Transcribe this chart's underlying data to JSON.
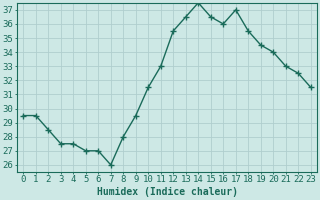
{
  "x": [
    0,
    1,
    2,
    3,
    4,
    5,
    6,
    7,
    8,
    9,
    10,
    11,
    12,
    13,
    14,
    15,
    16,
    17,
    18,
    19,
    20,
    21,
    22,
    23
  ],
  "y": [
    29.5,
    29.5,
    28.5,
    27.5,
    27.5,
    27.0,
    27.0,
    26.0,
    28.0,
    29.5,
    31.5,
    33.0,
    35.5,
    36.5,
    37.5,
    36.5,
    36.0,
    37.0,
    35.5,
    34.5,
    34.0,
    33.0,
    32.5,
    31.5
  ],
  "line_color": "#1a6b5a",
  "marker": "+",
  "markersize": 4,
  "linewidth": 1.0,
  "bg_color": "#cde8e5",
  "grid_color": "#b0cece",
  "xlabel": "Humidex (Indice chaleur)",
  "ylim": [
    25.5,
    37.5
  ],
  "xlim": [
    -0.5,
    23.5
  ],
  "yticks": [
    26,
    27,
    28,
    29,
    30,
    31,
    32,
    33,
    34,
    35,
    36,
    37
  ],
  "xticks": [
    0,
    1,
    2,
    3,
    4,
    5,
    6,
    7,
    8,
    9,
    10,
    11,
    12,
    13,
    14,
    15,
    16,
    17,
    18,
    19,
    20,
    21,
    22,
    23
  ],
  "xtick_labels": [
    "0",
    "1",
    "2",
    "3",
    "4",
    "5",
    "6",
    "7",
    "8",
    "9",
    "10",
    "11",
    "12",
    "13",
    "14",
    "15",
    "16",
    "17",
    "18",
    "19",
    "20",
    "21",
    "22",
    "23"
  ],
  "xlabel_fontsize": 7,
  "tick_fontsize": 6.5
}
